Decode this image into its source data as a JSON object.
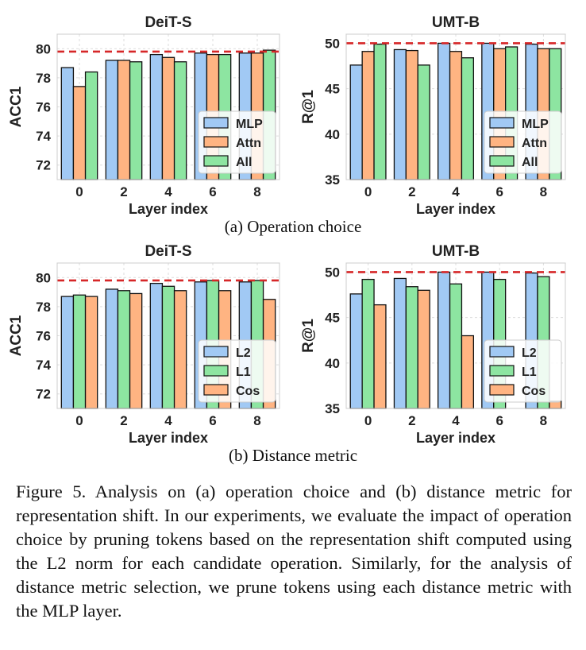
{
  "chart_data": [
    {
      "type": "bar",
      "title": "DeiT-S",
      "ylabel": "ACC1",
      "xlabel": "Layer index",
      "categories": [
        "0",
        "2",
        "4",
        "6",
        "8"
      ],
      "ylim": [
        71,
        81
      ],
      "yticks": [
        72,
        74,
        76,
        78,
        80
      ],
      "reference_line": 79.8,
      "legend_position": "lower-right",
      "grid": true,
      "series": [
        {
          "name": "MLP",
          "color": "#a1c9f4",
          "values": [
            78.7,
            79.2,
            79.6,
            79.7,
            79.7
          ]
        },
        {
          "name": "Attn",
          "color": "#ffb482",
          "values": [
            77.4,
            79.2,
            79.4,
            79.6,
            79.7
          ]
        },
        {
          "name": "All",
          "color": "#8de5a1",
          "values": [
            78.4,
            79.1,
            79.1,
            79.6,
            79.9
          ]
        }
      ]
    },
    {
      "type": "bar",
      "title": "UMT-B",
      "ylabel": "R@1",
      "xlabel": "Layer index",
      "categories": [
        "0",
        "2",
        "4",
        "6",
        "8"
      ],
      "ylim": [
        35,
        51
      ],
      "yticks": [
        35,
        40,
        45,
        50
      ],
      "reference_line": 50.0,
      "legend_position": "lower-right",
      "grid": true,
      "series": [
        {
          "name": "MLP",
          "color": "#a1c9f4",
          "values": [
            47.6,
            49.3,
            50.0,
            50.0,
            49.9
          ]
        },
        {
          "name": "Attn",
          "color": "#ffb482",
          "values": [
            49.1,
            49.2,
            49.1,
            49.4,
            49.4
          ]
        },
        {
          "name": "All",
          "color": "#8de5a1",
          "values": [
            49.9,
            47.6,
            48.4,
            49.6,
            49.4
          ]
        }
      ]
    },
    {
      "type": "bar",
      "title": "DeiT-S",
      "ylabel": "ACC1",
      "xlabel": "Layer index",
      "categories": [
        "0",
        "2",
        "4",
        "6",
        "8"
      ],
      "ylim": [
        71,
        81
      ],
      "yticks": [
        72,
        74,
        76,
        78,
        80
      ],
      "reference_line": 79.8,
      "legend_position": "lower-right",
      "grid": true,
      "series": [
        {
          "name": "L2",
          "color": "#a1c9f4",
          "values": [
            78.7,
            79.2,
            79.6,
            79.7,
            79.7
          ]
        },
        {
          "name": "L1",
          "color": "#8de5a1",
          "values": [
            78.8,
            79.1,
            79.4,
            79.8,
            79.8
          ]
        },
        {
          "name": "Cos",
          "color": "#ffb482",
          "values": [
            78.7,
            78.9,
            79.1,
            79.1,
            78.5
          ]
        }
      ]
    },
    {
      "type": "bar",
      "title": "UMT-B",
      "ylabel": "R@1",
      "xlabel": "Layer index",
      "categories": [
        "0",
        "2",
        "4",
        "6",
        "8"
      ],
      "ylim": [
        35,
        51
      ],
      "yticks": [
        35,
        40,
        45,
        50
      ],
      "reference_line": 50.0,
      "legend_position": "lower-right",
      "grid": true,
      "series": [
        {
          "name": "L2",
          "color": "#a1c9f4",
          "values": [
            47.6,
            49.3,
            50.0,
            50.0,
            49.9
          ]
        },
        {
          "name": "L1",
          "color": "#8de5a1",
          "values": [
            49.2,
            48.4,
            48.7,
            49.2,
            49.5
          ]
        },
        {
          "name": "Cos",
          "color": "#ffb482",
          "values": [
            46.4,
            48.0,
            43.0,
            35.0,
            35.8
          ]
        }
      ]
    }
  ],
  "subcaptions": {
    "a": "(a) Operation choice",
    "b": "(b) Distance metric"
  },
  "caption": "Figure 5.  Analysis on (a) operation choice and (b) distance metric for representation shift.  In our experiments, we evaluate the impact of operation choice by pruning tokens based on the representation shift computed using the L2 norm for each candidate operation. Similarly, for the analysis of distance metric selection, we prune tokens using each distance metric with the MLP layer.",
  "colors": {
    "reference_line": "#d62728",
    "bar_edge": "#111111",
    "grid": "#dddddd"
  }
}
